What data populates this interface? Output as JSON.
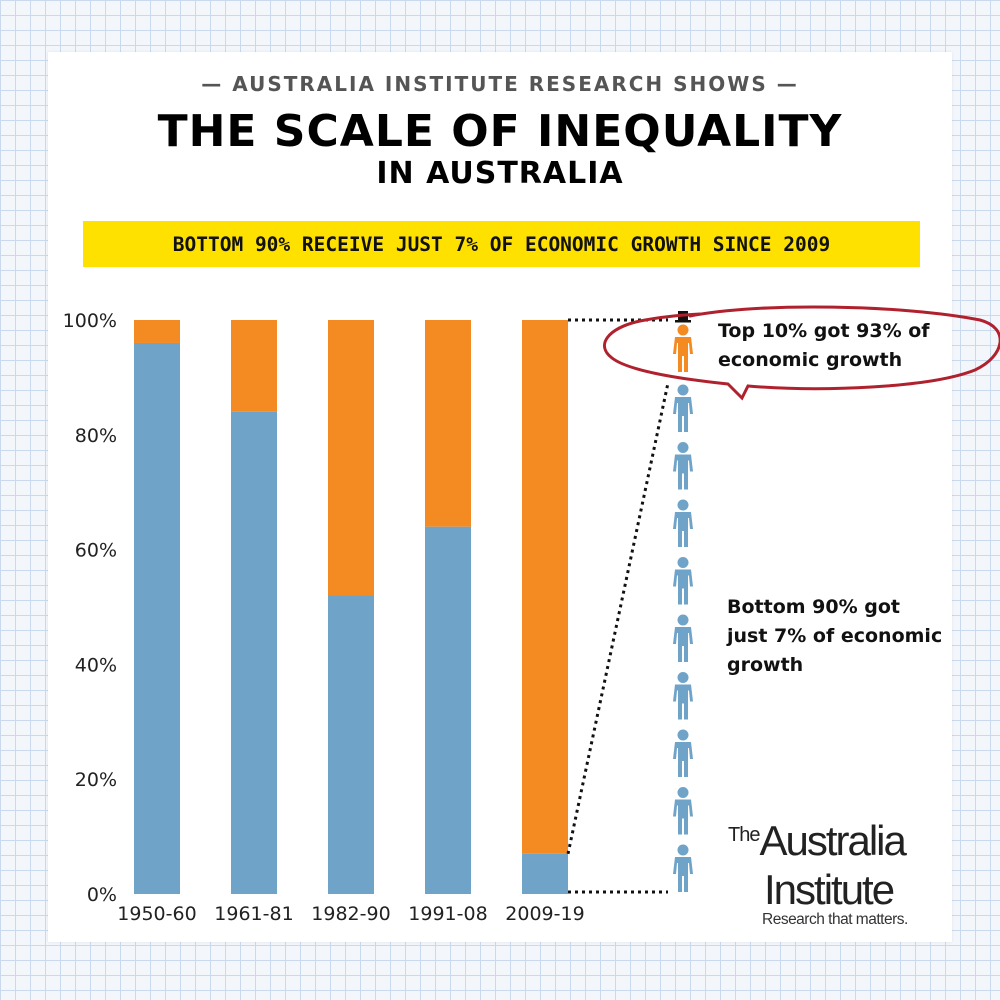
{
  "header": {
    "kicker": "— AUSTRALIA INSTITUTE RESEARCH SHOWS —",
    "title": "THE SCALE OF INEQUALITY",
    "subtitle": "IN AUSTRALIA",
    "banner": "BOTTOM 90% RECEIVE JUST 7% OF ECONOMIC GROWTH SINCE 2009"
  },
  "annotations": {
    "top": "Top 10% got 93% of economic growth",
    "bottom": "Bottom 90% got just 7% of economic growth"
  },
  "logo": {
    "the": "The",
    "australia": "Australia",
    "institute": "Institute",
    "tagline": "Research that matters."
  },
  "colors": {
    "bottom90": "#6fa3c8",
    "top10": "#f48a22",
    "banner": "#ffe100",
    "circle": "#b0212e"
  },
  "chart_data": {
    "type": "bar",
    "stacked": true,
    "categories": [
      "1950-60",
      "1961-81",
      "1982-90",
      "1991-08",
      "2009-19"
    ],
    "series": [
      {
        "values": [
          96,
          84,
          52,
          64,
          7
        ]
      },
      {
        "values": [
          4,
          16,
          48,
          36,
          93
        ]
      }
    ],
    "ylim": [
      0,
      100
    ],
    "y_ticks": [
      0,
      20,
      40,
      60,
      80,
      100
    ],
    "y_tick_labels": [
      "0%",
      "20%",
      "40%",
      "60%",
      "80%",
      "100%"
    ],
    "grid": false
  },
  "people_icons": {
    "top_count": 1,
    "bottom_count": 9,
    "icon": "person-icon",
    "top_icon": "person-top-hat-icon"
  }
}
